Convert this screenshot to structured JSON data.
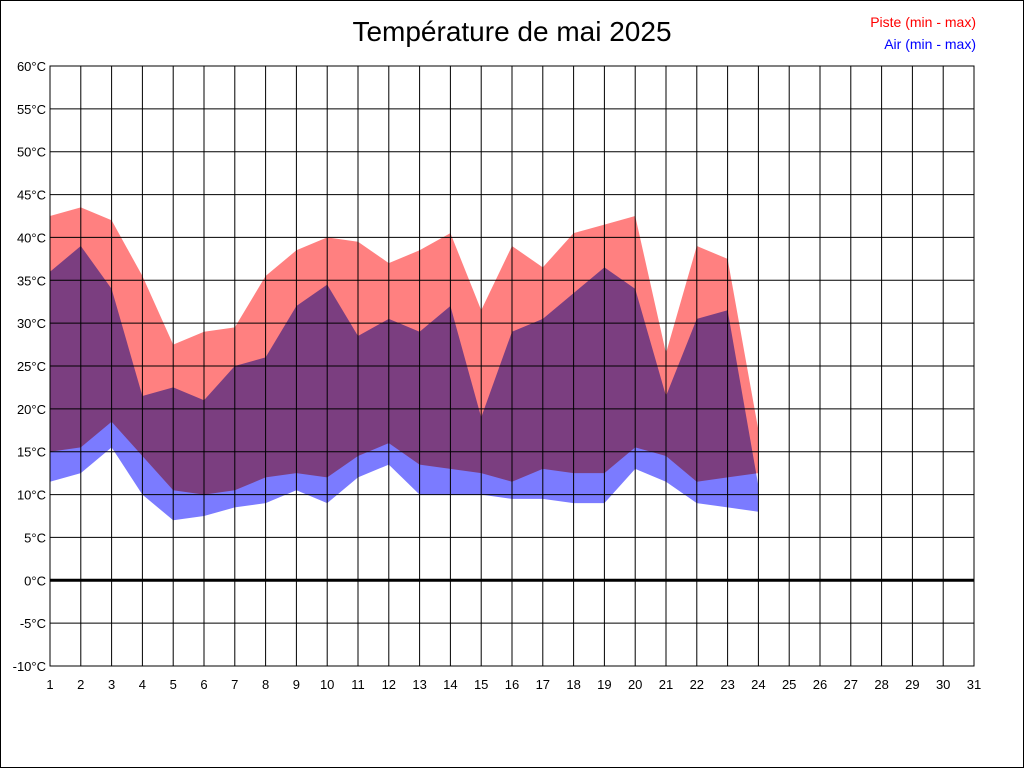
{
  "chart_data": {
    "type": "area",
    "title": "Température de mai 2025",
    "x": [
      1,
      2,
      3,
      4,
      5,
      6,
      7,
      8,
      9,
      10,
      11,
      12,
      13,
      14,
      15,
      16,
      17,
      18,
      19,
      20,
      21,
      22,
      23,
      24
    ],
    "x_ticks": [
      "1",
      "2",
      "3",
      "4",
      "5",
      "6",
      "7",
      "8",
      "9",
      "10",
      "11",
      "12",
      "13",
      "14",
      "15",
      "16",
      "17",
      "18",
      "19",
      "20",
      "21",
      "22",
      "23",
      "24",
      "25",
      "26",
      "27",
      "28",
      "29",
      "30",
      "31"
    ],
    "xlim": [
      1,
      31
    ],
    "ylim": [
      -10,
      60
    ],
    "y_ticks": [
      "-10°C",
      "-5°C",
      "0°C",
      "5°C",
      "10°C",
      "15°C",
      "20°C",
      "25°C",
      "30°C",
      "35°C",
      "40°C",
      "45°C",
      "50°C",
      "55°C",
      "60°C"
    ],
    "grid": true,
    "legend_position": "top-right",
    "series": [
      {
        "name": "Piste (min - max)",
        "color": "#ff8080",
        "min": [
          15,
          15.5,
          18.5,
          14.5,
          10.5,
          10,
          10.5,
          12,
          12.5,
          12,
          14.5,
          16,
          13.5,
          13,
          12.5,
          11.5,
          13,
          12.5,
          12.5,
          15.5,
          14.5,
          11.5,
          12,
          12.5
        ],
        "max": [
          42.5,
          43.5,
          42,
          35.5,
          27.5,
          29,
          29.5,
          35.5,
          38.5,
          40,
          39.5,
          37,
          38.5,
          40.5,
          31.5,
          39,
          36.5,
          40.5,
          41.5,
          42.5,
          26.5,
          39,
          37.5,
          17.5
        ]
      },
      {
        "name": "Air (min - max)",
        "color": "#7b7bff",
        "min": [
          11.5,
          12.5,
          15.5,
          10,
          7,
          7.5,
          8.5,
          9,
          10.5,
          9,
          12,
          13.5,
          10,
          10,
          10,
          9.5,
          9.5,
          9,
          9,
          13,
          11.5,
          9,
          8.5,
          8
        ],
        "max": [
          36,
          39,
          34,
          21.5,
          22.5,
          21,
          25,
          26,
          32,
          34.5,
          28.5,
          30.5,
          29,
          32,
          19,
          29,
          30.5,
          33.5,
          36.5,
          34,
          21.5,
          30.5,
          31.5,
          11
        ]
      }
    ]
  }
}
